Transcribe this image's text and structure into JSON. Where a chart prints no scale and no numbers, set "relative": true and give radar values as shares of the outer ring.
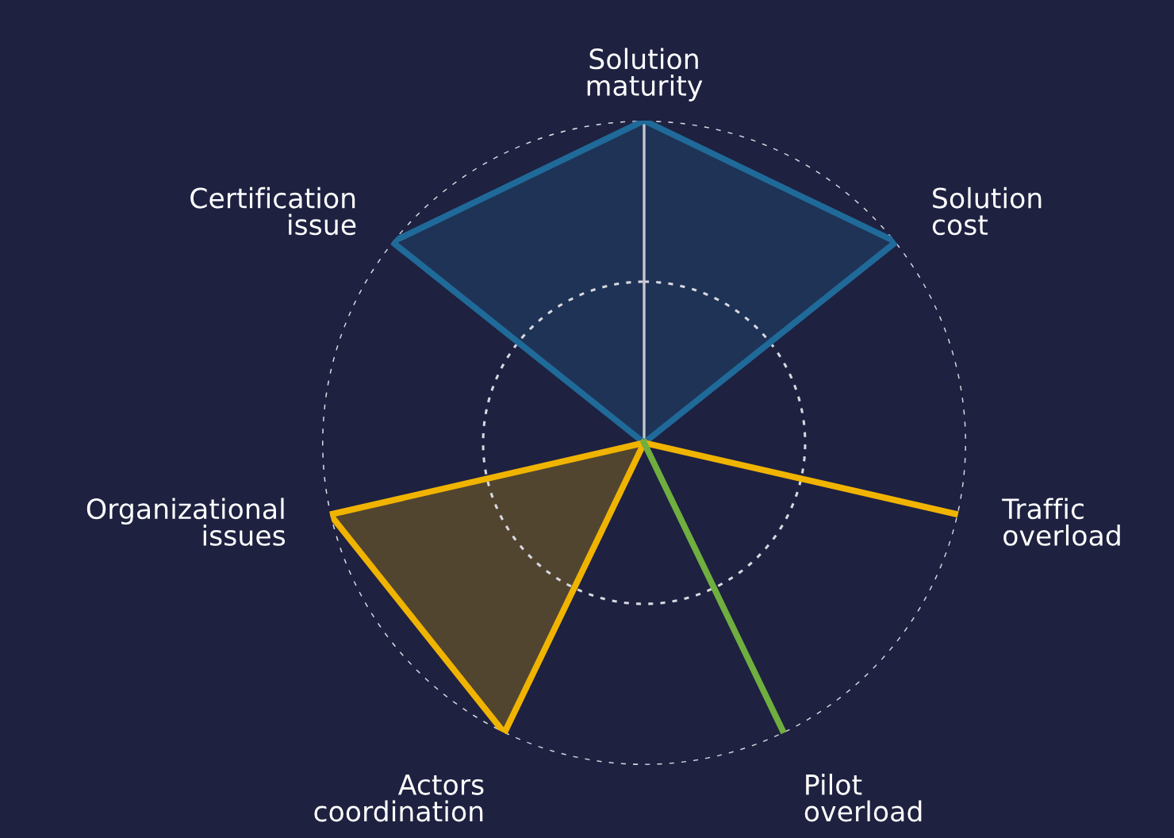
{
  "chart_data": {
    "type": "radar",
    "relative": true,
    "grid": true,
    "categories": [
      "Solution\nmaturity",
      "Solution\ncost",
      "Traffic\noverload",
      "Pilot\noverload",
      "Actors\ncoordination",
      "Organizational\nissues",
      "Certification\nissue"
    ],
    "series": [
      {
        "color": "#1f6a99",
        "values": [
          1,
          1,
          0,
          0,
          0,
          0,
          1
        ]
      },
      {
        "color": "#f0b400",
        "values": [
          0,
          0,
          1,
          0,
          1,
          1,
          0
        ]
      },
      {
        "color": "#6fae3f",
        "values": [
          0,
          0,
          0,
          1,
          0,
          0,
          0
        ]
      }
    ]
  }
}
